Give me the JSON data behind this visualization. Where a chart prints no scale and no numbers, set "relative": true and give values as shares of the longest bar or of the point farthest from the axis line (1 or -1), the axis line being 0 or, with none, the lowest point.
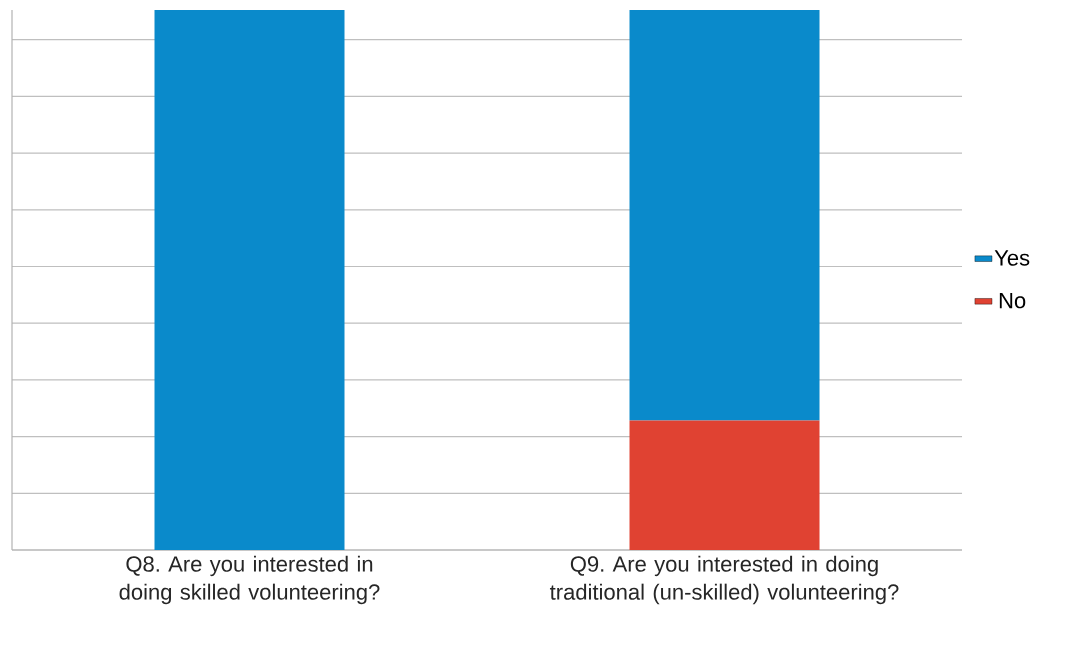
{
  "chart_data": {
    "type": "bar",
    "stacked": true,
    "relative": true,
    "categories": [
      "Q8. Are you interested in doing skilled volunteering?",
      "Q9. Are you interested in doing traditional (un-skilled) volunteering?"
    ],
    "series": [
      {
        "name": "No",
        "color": "#e04232",
        "values": [
          0,
          0.24
        ]
      },
      {
        "name": "Yes",
        "color": "#0a8acb",
        "values": [
          1,
          0.76
        ]
      }
    ],
    "grid": "y",
    "legend": "right"
  }
}
